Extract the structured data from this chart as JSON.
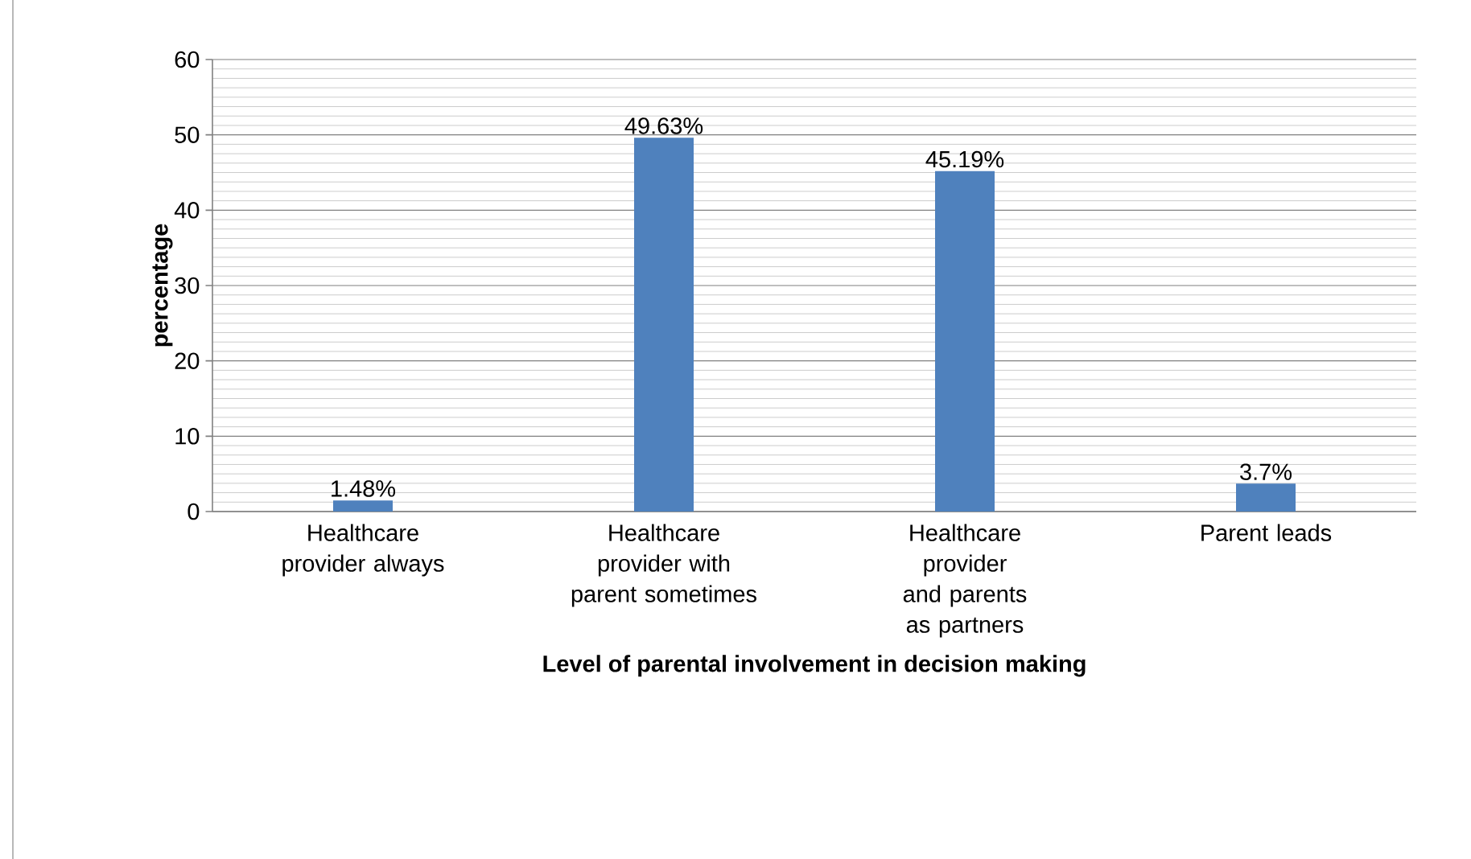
{
  "chart_data": {
    "type": "bar",
    "xlabel": "Level of parental involvement in decision making",
    "ylabel": "percentage",
    "categories": [
      "Healthcare provider always",
      "Healthcare provider with parent sometimes",
      "Healthcare provider and parents as partners",
      "Parent leads"
    ],
    "values": [
      1.48,
      49.63,
      45.19,
      3.7
    ],
    "value_labels": [
      "1.48%",
      "49.63%",
      "45.19%",
      "3.7%"
    ],
    "color": "#4f81bd",
    "ylim": [
      0,
      60
    ],
    "yticks": [
      0,
      10,
      20,
      30,
      40,
      50,
      60
    ],
    "grid": "y"
  }
}
